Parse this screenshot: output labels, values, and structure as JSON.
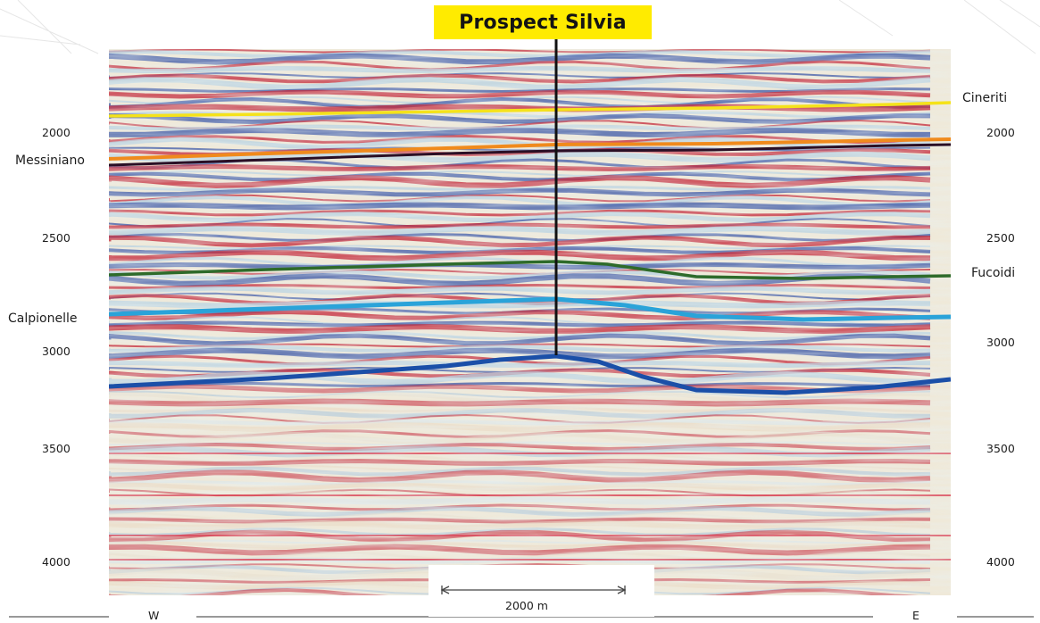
{
  "title": "Prospect Silvia",
  "depth_ticks": [
    "2000",
    "2500",
    "3000",
    "3500",
    "4000"
  ],
  "horizons": [
    {
      "name": "Cineriti",
      "color": "#f5e21a"
    },
    {
      "name": "Messiniano",
      "color": "#f08a1c"
    },
    {
      "name": "Fucoidi",
      "color": "#2e6b2a"
    },
    {
      "name": "Calpionelle",
      "color": "#2aa3d9"
    },
    {
      "name": "",
      "color": "#1b4fa8"
    }
  ],
  "orientation": {
    "west": "W",
    "east": "E"
  },
  "scale_bar": {
    "label": "2000 m"
  }
}
